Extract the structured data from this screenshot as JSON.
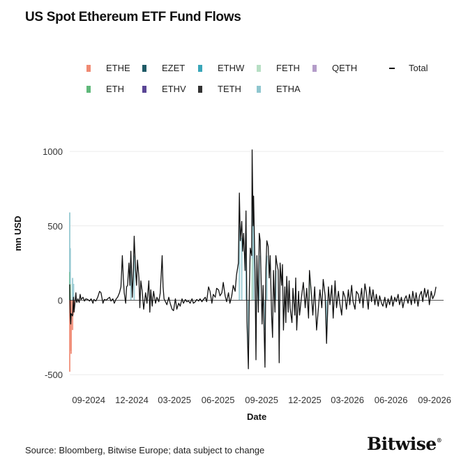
{
  "title": "US Spot Ethereum ETF Fund Flows",
  "source": "Source: Bloomberg, Bitwise Europe; data subject to change",
  "brand": "Bitwise",
  "brand_mark": "®",
  "chart_data": {
    "type": "bar",
    "xlabel": "Date",
    "ylabel": "mn USD",
    "ylim": [
      -560,
      1080
    ],
    "xlim": [
      "2024-07-23",
      "2026-09-20"
    ],
    "y_ticks": [
      -500,
      0,
      500,
      1000
    ],
    "x_ticks": [
      "09-2024",
      "12-2024",
      "03-2025",
      "06-2025",
      "09-2025",
      "12-2025",
      "03-2026",
      "06-2026",
      "09-2026"
    ],
    "x_tick_dates": [
      "2024-09-01",
      "2024-12-01",
      "2025-03-01",
      "2025-06-01",
      "2025-09-01",
      "2025-12-01",
      "2026-03-01",
      "2026-06-01",
      "2026-09-01"
    ],
    "grid": true,
    "legend_position": "top",
    "legend": [
      {
        "name": "ETHE",
        "color": "#f08a73",
        "kind": "bar"
      },
      {
        "name": "EZET",
        "color": "#1f5a66",
        "kind": "bar"
      },
      {
        "name": "ETHW",
        "color": "#3aa6b9",
        "kind": "bar"
      },
      {
        "name": "FETH",
        "color": "#b7dfc4",
        "kind": "bar"
      },
      {
        "name": "QETH",
        "color": "#b49cc9",
        "kind": "bar"
      },
      {
        "name": "Total",
        "color": "#111111",
        "kind": "line"
      },
      {
        "name": "ETH",
        "color": "#5fb87a",
        "kind": "bar"
      },
      {
        "name": "ETHV",
        "color": "#5a4595",
        "kind": "bar"
      },
      {
        "name": "TETH",
        "color": "#333333",
        "kind": "bar"
      },
      {
        "name": "ETHA",
        "color": "#8fc6cf",
        "kind": "bar"
      }
    ],
    "total": {
      "name": "Total",
      "color": "#111111",
      "points": [
        [
          "2024-07-23",
          107
        ],
        [
          "2024-07-24",
          -100
        ],
        [
          "2024-07-25",
          -160
        ],
        [
          "2024-07-26",
          -90
        ],
        [
          "2024-07-29",
          -105
        ],
        [
          "2024-07-30",
          -30
        ],
        [
          "2024-07-31",
          20
        ],
        [
          "2024-08-01",
          -80
        ],
        [
          "2024-08-02",
          -50
        ],
        [
          "2024-08-05",
          50
        ],
        [
          "2024-08-06",
          -5
        ],
        [
          "2024-08-07",
          -15
        ],
        [
          "2024-08-09",
          10
        ],
        [
          "2024-08-12",
          -15
        ],
        [
          "2024-08-14",
          40
        ],
        [
          "2024-08-16",
          5
        ],
        [
          "2024-08-20",
          20
        ],
        [
          "2024-08-23",
          -5
        ],
        [
          "2024-08-26",
          10
        ],
        [
          "2024-08-30",
          5
        ],
        [
          "2024-09-03",
          -5
        ],
        [
          "2024-09-06",
          10
        ],
        [
          "2024-09-10",
          -20
        ],
        [
          "2024-09-12",
          5
        ],
        [
          "2024-09-16",
          -5
        ],
        [
          "2024-09-20",
          20
        ],
        [
          "2024-09-24",
          60
        ],
        [
          "2024-09-27",
          50
        ],
        [
          "2024-10-01",
          -20
        ],
        [
          "2024-10-04",
          5
        ],
        [
          "2024-10-08",
          0
        ],
        [
          "2024-10-11",
          10
        ],
        [
          "2024-10-15",
          20
        ],
        [
          "2024-10-18",
          -5
        ],
        [
          "2024-10-22",
          10
        ],
        [
          "2024-10-25",
          -20
        ],
        [
          "2024-10-29",
          10
        ],
        [
          "2024-11-01",
          20
        ],
        [
          "2024-11-05",
          50
        ],
        [
          "2024-11-08",
          90
        ],
        [
          "2024-11-11",
          300
        ],
        [
          "2024-11-13",
          150
        ],
        [
          "2024-11-15",
          50
        ],
        [
          "2024-11-18",
          -20
        ],
        [
          "2024-11-20",
          90
        ],
        [
          "2024-11-22",
          100
        ],
        [
          "2024-11-25",
          250
        ],
        [
          "2024-11-27",
          100
        ],
        [
          "2024-11-29",
          330
        ],
        [
          "2024-12-02",
          20
        ],
        [
          "2024-12-04",
          180
        ],
        [
          "2024-12-06",
          430
        ],
        [
          "2024-12-09",
          200
        ],
        [
          "2024-12-11",
          100
        ],
        [
          "2024-12-13",
          270
        ],
        [
          "2024-12-16",
          150
        ],
        [
          "2024-12-18",
          -50
        ],
        [
          "2024-12-20",
          130
        ],
        [
          "2024-12-23",
          60
        ],
        [
          "2024-12-26",
          -60
        ],
        [
          "2024-12-30",
          50
        ],
        [
          "2025-01-02",
          -20
        ],
        [
          "2025-01-06",
          130
        ],
        [
          "2025-01-08",
          -80
        ],
        [
          "2025-01-10",
          70
        ],
        [
          "2025-01-13",
          -40
        ],
        [
          "2025-01-16",
          60
        ],
        [
          "2025-01-20",
          -20
        ],
        [
          "2025-01-23",
          20
        ],
        [
          "2025-01-27",
          -10
        ],
        [
          "2025-01-30",
          50
        ],
        [
          "2025-02-03",
          300
        ],
        [
          "2025-02-05",
          90
        ],
        [
          "2025-02-07",
          10
        ],
        [
          "2025-02-10",
          -10
        ],
        [
          "2025-02-13",
          -30
        ],
        [
          "2025-02-17",
          20
        ],
        [
          "2025-02-20",
          -20
        ],
        [
          "2025-02-24",
          -60
        ],
        [
          "2025-02-27",
          -70
        ],
        [
          "2025-03-03",
          10
        ],
        [
          "2025-03-06",
          -60
        ],
        [
          "2025-03-10",
          -20
        ],
        [
          "2025-03-13",
          -40
        ],
        [
          "2025-03-17",
          10
        ],
        [
          "2025-03-20",
          -20
        ],
        [
          "2025-03-24",
          5
        ],
        [
          "2025-03-27",
          -10
        ],
        [
          "2025-03-31",
          -5
        ],
        [
          "2025-04-03",
          -20
        ],
        [
          "2025-04-07",
          10
        ],
        [
          "2025-04-10",
          -20
        ],
        [
          "2025-04-14",
          -10
        ],
        [
          "2025-04-17",
          5
        ],
        [
          "2025-04-21",
          -5
        ],
        [
          "2025-04-24",
          10
        ],
        [
          "2025-04-28",
          -10
        ],
        [
          "2025-05-01",
          5
        ],
        [
          "2025-05-05",
          20
        ],
        [
          "2025-05-08",
          -10
        ],
        [
          "2025-05-12",
          90
        ],
        [
          "2025-05-15",
          60
        ],
        [
          "2025-05-19",
          -20
        ],
        [
          "2025-05-22",
          40
        ],
        [
          "2025-05-26",
          20
        ],
        [
          "2025-05-29",
          80
        ],
        [
          "2025-06-02",
          70
        ],
        [
          "2025-06-05",
          30
        ],
        [
          "2025-06-09",
          50
        ],
        [
          "2025-06-12",
          120
        ],
        [
          "2025-06-16",
          30
        ],
        [
          "2025-06-19",
          -10
        ],
        [
          "2025-06-23",
          50
        ],
        [
          "2025-06-26",
          -20
        ],
        [
          "2025-06-30",
          30
        ],
        [
          "2025-07-03",
          100
        ],
        [
          "2025-07-07",
          60
        ],
        [
          "2025-07-10",
          170
        ],
        [
          "2025-07-14",
          250
        ],
        [
          "2025-07-16",
          720
        ],
        [
          "2025-07-18",
          400
        ],
        [
          "2025-07-21",
          530
        ],
        [
          "2025-07-23",
          330
        ],
        [
          "2025-07-25",
          450
        ],
        [
          "2025-07-28",
          200
        ],
        [
          "2025-07-30",
          600
        ],
        [
          "2025-08-01",
          -140
        ],
        [
          "2025-08-04",
          -460
        ],
        [
          "2025-08-06",
          70
        ],
        [
          "2025-08-08",
          350
        ],
        [
          "2025-08-11",
          300
        ],
        [
          "2025-08-12",
          1010
        ],
        [
          "2025-08-14",
          500
        ],
        [
          "2025-08-15",
          700
        ],
        [
          "2025-08-18",
          200
        ],
        [
          "2025-08-20",
          -400
        ],
        [
          "2025-08-22",
          300
        ],
        [
          "2025-08-25",
          -80
        ],
        [
          "2025-08-27",
          450
        ],
        [
          "2025-08-29",
          400
        ],
        [
          "2025-09-02",
          -160
        ],
        [
          "2025-09-04",
          100
        ],
        [
          "2025-09-08",
          -450
        ],
        [
          "2025-09-10",
          200
        ],
        [
          "2025-09-12",
          400
        ],
        [
          "2025-09-15",
          360
        ],
        [
          "2025-09-17",
          150
        ],
        [
          "2025-09-19",
          300
        ],
        [
          "2025-09-22",
          -100
        ],
        [
          "2025-09-24",
          -250
        ],
        [
          "2025-09-26",
          200
        ],
        [
          "2025-09-29",
          -80
        ],
        [
          "2025-10-01",
          300
        ],
        [
          "2025-10-03",
          250
        ],
        [
          "2025-10-06",
          200
        ],
        [
          "2025-10-08",
          -420
        ],
        [
          "2025-10-10",
          250
        ],
        [
          "2025-10-13",
          100
        ],
        [
          "2025-10-15",
          240
        ],
        [
          "2025-10-17",
          -200
        ],
        [
          "2025-10-20",
          90
        ],
        [
          "2025-10-22",
          -150
        ],
        [
          "2025-10-24",
          160
        ],
        [
          "2025-10-27",
          -80
        ],
        [
          "2025-10-29",
          130
        ],
        [
          "2025-10-31",
          -50
        ],
        [
          "2025-11-04",
          -150
        ],
        [
          "2025-11-06",
          80
        ],
        [
          "2025-11-10",
          -100
        ],
        [
          "2025-11-12",
          150
        ],
        [
          "2025-11-14",
          -200
        ],
        [
          "2025-11-18",
          60
        ],
        [
          "2025-11-20",
          -100
        ],
        [
          "2025-11-24",
          20
        ],
        [
          "2025-11-28",
          120
        ],
        [
          "2025-12-02",
          -50
        ],
        [
          "2025-12-05",
          80
        ],
        [
          "2025-12-09",
          -120
        ],
        [
          "2025-12-11",
          200
        ],
        [
          "2025-12-15",
          40
        ],
        [
          "2025-12-18",
          -100
        ],
        [
          "2025-12-22",
          90
        ],
        [
          "2025-12-26",
          -200
        ],
        [
          "2026-01-02",
          70
        ],
        [
          "2026-01-06",
          -50
        ],
        [
          "2026-01-09",
          140
        ],
        [
          "2026-01-13",
          30
        ],
        [
          "2026-01-16",
          -290
        ],
        [
          "2026-01-20",
          90
        ],
        [
          "2026-01-23",
          -30
        ],
        [
          "2026-01-27",
          100
        ],
        [
          "2026-01-30",
          -120
        ],
        [
          "2026-02-03",
          130
        ],
        [
          "2026-02-06",
          -50
        ],
        [
          "2026-02-10",
          60
        ],
        [
          "2026-02-13",
          -20
        ],
        [
          "2026-02-17",
          -100
        ],
        [
          "2026-02-20",
          60
        ],
        [
          "2026-02-24",
          20
        ],
        [
          "2026-02-27",
          -60
        ],
        [
          "2026-03-03",
          70
        ],
        [
          "2026-03-06",
          -30
        ],
        [
          "2026-03-10",
          100
        ],
        [
          "2026-03-13",
          -10
        ],
        [
          "2026-03-17",
          -60
        ],
        [
          "2026-03-20",
          60
        ],
        [
          "2026-03-24",
          40
        ],
        [
          "2026-03-27",
          -20
        ],
        [
          "2026-03-31",
          80
        ],
        [
          "2026-04-03",
          -50
        ],
        [
          "2026-04-07",
          110
        ],
        [
          "2026-04-10",
          50
        ],
        [
          "2026-04-14",
          -60
        ],
        [
          "2026-04-17",
          90
        ],
        [
          "2026-04-21",
          -10
        ],
        [
          "2026-04-24",
          70
        ],
        [
          "2026-04-28",
          -30
        ],
        [
          "2026-05-01",
          40
        ],
        [
          "2026-05-05",
          -40
        ],
        [
          "2026-05-08",
          30
        ],
        [
          "2026-05-12",
          -20
        ],
        [
          "2026-05-15",
          -40
        ],
        [
          "2026-05-19",
          20
        ],
        [
          "2026-05-22",
          -50
        ],
        [
          "2026-05-26",
          10
        ],
        [
          "2026-05-29",
          -30
        ],
        [
          "2026-06-02",
          30
        ],
        [
          "2026-06-05",
          -40
        ],
        [
          "2026-06-09",
          20
        ],
        [
          "2026-06-12",
          -10
        ],
        [
          "2026-06-16",
          40
        ],
        [
          "2026-06-19",
          -30
        ],
        [
          "2026-06-23",
          20
        ],
        [
          "2026-06-26",
          -50
        ],
        [
          "2026-06-30",
          10
        ],
        [
          "2026-07-03",
          30
        ],
        [
          "2026-07-07",
          -20
        ],
        [
          "2026-07-10",
          40
        ],
        [
          "2026-07-14",
          -30
        ],
        [
          "2026-07-17",
          60
        ],
        [
          "2026-07-21",
          -20
        ],
        [
          "2026-07-24",
          50
        ],
        [
          "2026-07-28",
          -40
        ],
        [
          "2026-07-31",
          30
        ],
        [
          "2026-08-04",
          60
        ],
        [
          "2026-08-07",
          -10
        ],
        [
          "2026-08-11",
          80
        ],
        [
          "2026-08-14",
          20
        ],
        [
          "2026-08-18",
          70
        ],
        [
          "2026-08-21",
          -30
        ],
        [
          "2026-08-25",
          60
        ],
        [
          "2026-08-28",
          10
        ],
        [
          "2026-09-01",
          40
        ],
        [
          "2026-09-04",
          90
        ]
      ]
    },
    "fund_bars": [
      {
        "date": "2024-07-23",
        "fund": "ETHA",
        "value": 590
      },
      {
        "date": "2024-07-23",
        "fund": "ETHE",
        "value": -480
      },
      {
        "date": "2024-07-23",
        "fund": "ETH",
        "value": 190
      },
      {
        "date": "2024-07-24",
        "fund": "ETHA",
        "value": 350
      },
      {
        "date": "2024-07-25",
        "fund": "ETHE",
        "value": -340
      },
      {
        "date": "2024-07-25",
        "fund": "FETH",
        "value": 110
      },
      {
        "date": "2024-07-26",
        "fund": "ETHE",
        "value": -360
      },
      {
        "date": "2024-07-29",
        "fund": "ETHE",
        "value": -200
      },
      {
        "date": "2024-07-29",
        "fund": "ETHA",
        "value": 150
      },
      {
        "date": "2024-07-30",
        "fund": "ETHE",
        "value": -100
      },
      {
        "date": "2024-07-31",
        "fund": "ETHA",
        "value": 110
      },
      {
        "date": "2024-08-01",
        "fund": "ETHE",
        "value": -80
      },
      {
        "date": "2024-11-29",
        "fund": "ETHA",
        "value": 250
      },
      {
        "date": "2024-12-06",
        "fund": "ETHA",
        "value": 300
      },
      {
        "date": "2025-07-16",
        "fund": "ETHA",
        "value": 500
      },
      {
        "date": "2025-07-21",
        "fund": "ETHA",
        "value": 420
      },
      {
        "date": "2025-07-30",
        "fund": "ETHA",
        "value": 450
      },
      {
        "date": "2025-08-04",
        "fund": "ETHA",
        "value": -300
      },
      {
        "date": "2025-08-12",
        "fund": "ETHA",
        "value": 640
      },
      {
        "date": "2025-08-15",
        "fund": "ETHA",
        "value": 500
      },
      {
        "date": "2025-08-12",
        "fund": "FETH",
        "value": 280
      },
      {
        "date": "2025-08-20",
        "fund": "ETHA",
        "value": -260
      },
      {
        "date": "2025-08-27",
        "fund": "ETHA",
        "value": 300
      },
      {
        "date": "2025-09-08",
        "fund": "ETHA",
        "value": -200
      },
      {
        "date": "2025-09-12",
        "fund": "ETHA",
        "value": 300
      },
      {
        "date": "2025-10-08",
        "fund": "ETHA",
        "value": -200
      },
      {
        "date": "2025-10-01",
        "fund": "ETHA",
        "value": 200
      },
      {
        "date": "2025-12-11",
        "fund": "FETH",
        "value": 170
      },
      {
        "date": "2026-01-16",
        "fund": "ETHA",
        "value": -200
      }
    ]
  }
}
